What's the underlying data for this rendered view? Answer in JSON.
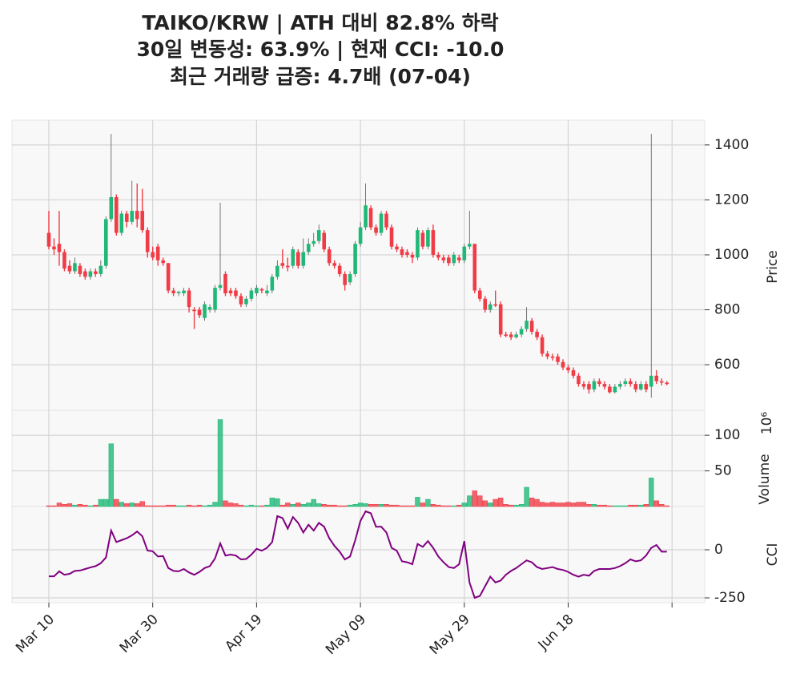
{
  "chart_data": {
    "type": "candlestick",
    "title": [
      "TAIKO/KRW | ATH 대비 82.8% 하락",
      "30일 변동성: 63.9% | 현재 CCI: -10.0",
      "최근 거래량 급증: 4.7배 (07-04)"
    ],
    "x": [
      "Mar 10",
      "Mar 11",
      "Mar 12",
      "Mar 13",
      "Mar 14",
      "Mar 15",
      "Mar 16",
      "Mar 17",
      "Mar 18",
      "Mar 19",
      "Mar 20",
      "Mar 21",
      "Mar 22",
      "Mar 23",
      "Mar 24",
      "Mar 25",
      "Mar 26",
      "Mar 27",
      "Mar 28",
      "Mar 29",
      "Mar 30",
      "Mar 31",
      "Apr 01",
      "Apr 02",
      "Apr 03",
      "Apr 04",
      "Apr 05",
      "Apr 06",
      "Apr 07",
      "Apr 08",
      "Apr 09",
      "Apr 10",
      "Apr 11",
      "Apr 12",
      "Apr 13",
      "Apr 14",
      "Apr 15",
      "Apr 16",
      "Apr 17",
      "Apr 18",
      "Apr 19",
      "Apr 20",
      "Apr 21",
      "Apr 22",
      "Apr 23",
      "Apr 24",
      "Apr 25",
      "Apr 26",
      "Apr 27",
      "Apr 28",
      "Apr 29",
      "Apr 30",
      "May 01",
      "May 02",
      "May 03",
      "May 04",
      "May 05",
      "May 06",
      "May 07",
      "May 08",
      "May 09",
      "May 10",
      "May 11",
      "May 12",
      "May 13",
      "May 14",
      "May 15",
      "May 16",
      "May 17",
      "May 18",
      "May 19",
      "May 20",
      "May 21",
      "May 22",
      "May 23",
      "May 24",
      "May 25",
      "May 26",
      "May 27",
      "May 28",
      "May 29",
      "May 30",
      "May 31",
      "Jun 01",
      "Jun 02",
      "Jun 03",
      "Jun 04",
      "Jun 05",
      "Jun 06",
      "Jun 07",
      "Jun 08",
      "Jun 09",
      "Jun 10",
      "Jun 11",
      "Jun 12",
      "Jun 13",
      "Jun 14",
      "Jun 15",
      "Jun 16",
      "Jun 17",
      "Jun 18",
      "Jun 19",
      "Jun 20",
      "Jun 21",
      "Jun 22",
      "Jun 23",
      "Jun 24",
      "Jun 25",
      "Jun 26",
      "Jun 27",
      "Jun 28",
      "Jun 29",
      "Jun 30",
      "Jul 01",
      "Jul 02",
      "Jul 03",
      "Jul 04",
      "Jul 05",
      "Jul 06",
      "Jul 07"
    ],
    "xticks": [
      "Mar 10",
      "Mar 30",
      "Apr 19",
      "May 09",
      "May 29",
      "Jun 18",
      null
    ],
    "open": [
      1080,
      1030,
      1040,
      1010,
      960,
      940,
      960,
      940,
      920,
      940,
      930,
      960,
      1130,
      1210,
      1080,
      1150,
      1120,
      1160,
      1160,
      1090,
      1010,
      1030,
      980,
      970,
      870,
      860,
      860,
      870,
      800,
      800,
      770,
      800,
      800,
      880,
      930,
      870,
      870,
      850,
      820,
      840,
      860,
      875,
      860,
      870,
      920,
      970,
      960,
      960,
      1010,
      960,
      1010,
      1040,
      1050,
      1080,
      1020,
      970,
      960,
      930,
      900,
      930,
      1040,
      1100,
      1170,
      1100,
      1080,
      1150,
      1100,
      1030,
      1020,
      1010,
      1000,
      990,
      1080,
      1030,
      1090,
      1000,
      990,
      990,
      970,
      990,
      980,
      1030,
      1040,
      870,
      840,
      800,
      820,
      820,
      710,
      710,
      700,
      710,
      730,
      760,
      720,
      700,
      640,
      630,
      630,
      610,
      590,
      580,
      560,
      530,
      530,
      510,
      540,
      530,
      520,
      500,
      520,
      530,
      540,
      530,
      510,
      530,
      520,
      560,
      540,
      535
    ],
    "high": [
      1160,
      1060,
      1160,
      1020,
      980,
      990,
      970,
      950,
      950,
      950,
      980,
      1140,
      1440,
      1220,
      1160,
      1160,
      1270,
      1260,
      1240,
      1100,
      1030,
      1040,
      990,
      970,
      880,
      870,
      880,
      880,
      810,
      810,
      830,
      820,
      890,
      1190,
      940,
      880,
      880,
      860,
      850,
      880,
      890,
      880,
      890,
      930,
      980,
      1020,
      990,
      1030,
      1020,
      1060,
      1060,
      1080,
      1110,
      1090,
      1030,
      980,
      970,
      940,
      940,
      1050,
      1120,
      1260,
      1180,
      1110,
      1160,
      1160,
      1110,
      1040,
      1030,
      1020,
      1010,
      1100,
      1090,
      1100,
      1110,
      1010,
      1000,
      1000,
      1010,
      1000,
      1040,
      1160,
      1040,
      880,
      850,
      830,
      870,
      830,
      720,
      720,
      720,
      740,
      810,
      770,
      730,
      710,
      650,
      640,
      640,
      620,
      600,
      590,
      570,
      540,
      540,
      550,
      550,
      540,
      530,
      530,
      540,
      550,
      550,
      540,
      540,
      540,
      1440,
      580,
      550,
      540
    ],
    "low": [
      1020,
      1000,
      960,
      940,
      930,
      930,
      920,
      910,
      910,
      920,
      920,
      950,
      1120,
      1070,
      1070,
      1100,
      1110,
      1100,
      1080,
      990,
      980,
      960,
      960,
      860,
      850,
      850,
      850,
      790,
      730,
      770,
      760,
      790,
      790,
      870,
      850,
      850,
      840,
      810,
      810,
      830,
      850,
      860,
      850,
      860,
      910,
      950,
      940,
      950,
      950,
      950,
      1000,
      1030,
      1040,
      1010,
      960,
      950,
      920,
      870,
      890,
      920,
      1030,
      1090,
      1090,
      1070,
      1070,
      1090,
      1020,
      1010,
      990,
      990,
      970,
      980,
      1020,
      1020,
      990,
      980,
      970,
      960,
      960,
      970,
      970,
      1020,
      860,
      830,
      790,
      790,
      810,
      700,
      700,
      690,
      695,
      700,
      720,
      710,
      690,
      630,
      620,
      615,
      600,
      580,
      570,
      550,
      520,
      510,
      495,
      500,
      520,
      510,
      495,
      495,
      510,
      520,
      520,
      500,
      505,
      500,
      480,
      530,
      525,
      525
    ],
    "close": [
      1030,
      1020,
      1010,
      950,
      940,
      970,
      930,
      920,
      940,
      930,
      960,
      1130,
      1210,
      1080,
      1150,
      1120,
      1160,
      1130,
      1090,
      1010,
      990,
      980,
      970,
      870,
      860,
      865,
      870,
      810,
      795,
      780,
      820,
      810,
      880,
      890,
      860,
      860,
      850,
      820,
      840,
      870,
      880,
      870,
      870,
      920,
      960,
      960,
      955,
      1020,
      960,
      1010,
      1040,
      1050,
      1090,
      1020,
      970,
      960,
      930,
      890,
      930,
      1040,
      1100,
      1180,
      1100,
      1080,
      1150,
      1100,
      1030,
      1020,
      1000,
      1000,
      990,
      1090,
      1030,
      1090,
      1000,
      990,
      980,
      970,
      1000,
      980,
      1030,
      1040,
      870,
      840,
      800,
      820,
      815,
      710,
      705,
      700,
      710,
      730,
      760,
      720,
      700,
      640,
      630,
      625,
      610,
      590,
      580,
      560,
      530,
      520,
      510,
      540,
      530,
      520,
      500,
      520,
      530,
      540,
      530,
      510,
      530,
      510,
      560,
      540,
      535,
      530
    ],
    "up_color": "#1fb877",
    "down_color": "#f03c46",
    "ylim": [
      434,
      1490
    ],
    "yticks": [
      600,
      800,
      1000,
      1200,
      1400
    ],
    "ylabel": "Price",
    "grid": true,
    "volume": {
      "ylabel": "Volume",
      "scale_label": "10⁶",
      "values": [
        1,
        1,
        5,
        3,
        4,
        2,
        3,
        2,
        1,
        2,
        10,
        10,
        88,
        10,
        6,
        4,
        5,
        4,
        7,
        1,
        1,
        1,
        1,
        2,
        2,
        1,
        1,
        2,
        1,
        2,
        1,
        2,
        6,
        122,
        8,
        5,
        4,
        2,
        1,
        2,
        1,
        1,
        2,
        12,
        11,
        2,
        5,
        3,
        5,
        3,
        5,
        10,
        4,
        3,
        2,
        2,
        1,
        1,
        2,
        3,
        5,
        4,
        3,
        3,
        3,
        3,
        2,
        2,
        1,
        1,
        1,
        13,
        5,
        10,
        3,
        2,
        1,
        1,
        1,
        2,
        5,
        15,
        22,
        15,
        8,
        5,
        10,
        12,
        3,
        2,
        2,
        3,
        27,
        12,
        10,
        6,
        5,
        6,
        5,
        5,
        6,
        5,
        6,
        6,
        3,
        3,
        2,
        2,
        1,
        1,
        1,
        1,
        2,
        2,
        2,
        3,
        40,
        8,
        3,
        1
      ],
      "ylim": [
        0,
        135
      ],
      "yticks": [
        50,
        100
      ]
    },
    "cci": {
      "ylabel": "CCI",
      "color": "#800080",
      "values": [
        -138,
        -138,
        -112,
        -130,
        -125,
        -110,
        -108,
        -100,
        -92,
        -85,
        -70,
        -40,
        100,
        40,
        50,
        60,
        75,
        95,
        70,
        -4,
        -8,
        -35,
        -33,
        -95,
        -110,
        -112,
        -100,
        -118,
        -130,
        -115,
        -95,
        -85,
        -45,
        33,
        -30,
        -25,
        -30,
        -50,
        -48,
        -25,
        5,
        -5,
        10,
        40,
        175,
        165,
        110,
        170,
        140,
        90,
        130,
        100,
        140,
        120,
        60,
        20,
        -10,
        -50,
        -35,
        50,
        150,
        200,
        190,
        120,
        120,
        90,
        10,
        -5,
        -60,
        -65,
        -75,
        30,
        15,
        45,
        10,
        -35,
        -65,
        -90,
        -95,
        -75,
        45,
        -170,
        -250,
        -240,
        -190,
        -140,
        -170,
        -160,
        -130,
        -110,
        -95,
        -75,
        -55,
        -65,
        -90,
        -100,
        -95,
        -90,
        -100,
        -105,
        -115,
        -130,
        -140,
        -130,
        -135,
        -110,
        -100,
        -100,
        -100,
        -95,
        -85,
        -70,
        -50,
        -60,
        -55,
        -30,
        10,
        25,
        -10,
        -10
      ],
      "ylim": [
        -275,
        225
      ],
      "yticks": [
        -250,
        0
      ]
    }
  }
}
